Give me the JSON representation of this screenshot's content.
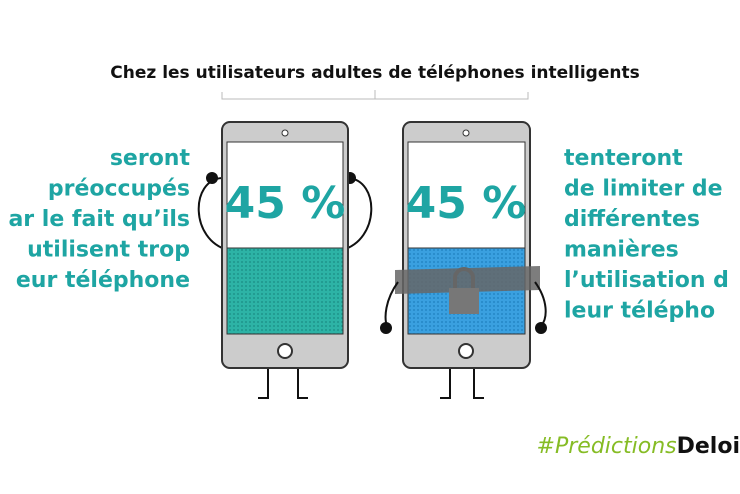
{
  "header": {
    "title": "Chez les utilisateurs adultes de téléphones intelligents"
  },
  "left": {
    "percent": "45 %",
    "lines": [
      "seront",
      "préoccupés",
      "ar le fait qu’ils",
      "utilisent trop",
      "eur téléphone"
    ]
  },
  "right": {
    "percent": "45 %",
    "lines": [
      "tenteront",
      "de limiter de",
      "différentes",
      "manières",
      "l’utilisation d",
      "leur télépho"
    ]
  },
  "footer": {
    "hashtag": "#Prédictions",
    "brand": "Deloi"
  }
}
